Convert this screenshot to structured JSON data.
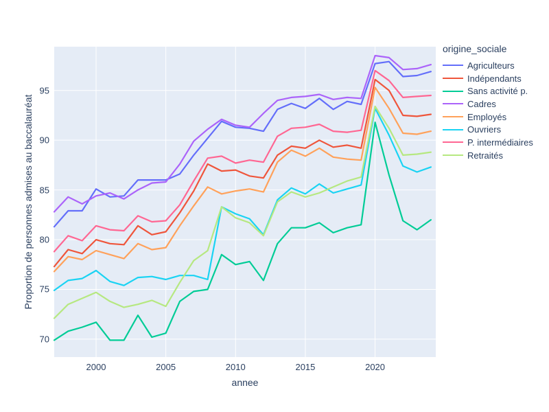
{
  "chart_data": {
    "type": "line",
    "title": "",
    "xlabel": "annee",
    "ylabel": "Proportion de personnes admises au baccalauréat",
    "legend_title": "origine_sociale",
    "x": [
      1997,
      1998,
      1999,
      2000,
      2001,
      2002,
      2003,
      2004,
      2005,
      2006,
      2007,
      2008,
      2009,
      2010,
      2011,
      2012,
      2013,
      2014,
      2015,
      2016,
      2017,
      2018,
      2019,
      2020,
      2021,
      2022,
      2023,
      2024
    ],
    "series": [
      {
        "name": "Agriculteurs",
        "color": "#636EFA",
        "values": [
          81.3,
          82.9,
          82.9,
          85.1,
          84.3,
          84.4,
          86.0,
          86.0,
          86.0,
          86.6,
          88.5,
          90.2,
          91.9,
          91.3,
          91.2,
          90.9,
          93.1,
          93.7,
          93.2,
          94.2,
          93.1,
          93.9,
          93.6,
          97.7,
          97.9,
          96.4,
          96.5,
          96.9
        ]
      },
      {
        "name": "Indépendants",
        "color": "#EF553B",
        "values": [
          77.3,
          79.0,
          78.6,
          80.0,
          79.6,
          79.5,
          81.4,
          80.5,
          80.8,
          82.7,
          84.9,
          87.6,
          86.9,
          87.0,
          86.4,
          86.2,
          88.5,
          89.4,
          89.2,
          90.0,
          89.3,
          89.5,
          89.2,
          96.1,
          95.0,
          92.5,
          92.4,
          92.6
        ]
      },
      {
        "name": "Sans activité p.",
        "color": "#00CC96",
        "values": [
          69.9,
          70.8,
          71.2,
          71.7,
          69.9,
          69.9,
          72.4,
          70.2,
          70.6,
          73.8,
          74.8,
          75.0,
          78.5,
          77.5,
          77.8,
          75.9,
          79.6,
          81.2,
          81.2,
          81.7,
          80.7,
          81.2,
          81.5,
          91.8,
          86.5,
          81.9,
          81.0,
          82.0
        ]
      },
      {
        "name": "Cadres",
        "color": "#AB63FA",
        "values": [
          82.8,
          84.3,
          83.6,
          84.4,
          84.7,
          84.1,
          85.0,
          85.7,
          85.8,
          87.6,
          89.9,
          91.1,
          92.1,
          91.5,
          91.3,
          92.7,
          94.0,
          94.3,
          94.4,
          94.6,
          94.1,
          94.3,
          94.2,
          98.5,
          98.3,
          97.1,
          97.2,
          97.6
        ]
      },
      {
        "name": "Employés",
        "color": "#FFA15A",
        "values": [
          76.8,
          78.3,
          78.0,
          78.9,
          78.5,
          78.1,
          79.6,
          79.0,
          79.2,
          81.4,
          83.4,
          85.3,
          84.6,
          84.9,
          85.1,
          84.8,
          87.8,
          89.0,
          88.4,
          89.2,
          88.3,
          88.1,
          88.0,
          95.3,
          93.2,
          90.7,
          90.6,
          90.9
        ]
      },
      {
        "name": "Ouvriers",
        "color": "#19D3F3",
        "values": [
          74.9,
          75.9,
          76.1,
          76.9,
          75.8,
          75.4,
          76.2,
          76.3,
          76.0,
          76.4,
          76.4,
          76.0,
          83.3,
          82.6,
          82.1,
          80.5,
          84.0,
          85.2,
          84.6,
          85.6,
          84.7,
          85.1,
          85.5,
          93.2,
          90.5,
          87.4,
          86.8,
          87.3
        ]
      },
      {
        "name": "P. intermédiaires",
        "color": "#FF6692",
        "values": [
          78.8,
          80.4,
          79.9,
          81.4,
          81.0,
          80.9,
          82.4,
          81.8,
          81.9,
          83.5,
          85.9,
          88.2,
          88.4,
          87.7,
          88.0,
          87.8,
          90.4,
          91.2,
          91.3,
          91.6,
          90.9,
          90.8,
          91.0,
          97.0,
          96.0,
          94.3,
          94.4,
          94.5
        ]
      },
      {
        "name": "Retraités",
        "color": "#B6E880",
        "values": [
          72.1,
          73.5,
          74.1,
          74.7,
          73.8,
          73.2,
          73.5,
          73.9,
          73.3,
          75.7,
          77.9,
          78.9,
          83.3,
          82.2,
          81.7,
          80.4,
          83.8,
          84.8,
          84.3,
          84.7,
          85.3,
          85.9,
          86.3,
          93.4,
          91.2,
          88.5,
          88.6,
          88.8
        ]
      }
    ],
    "xticks": [
      2000,
      2005,
      2010,
      2015,
      2020
    ],
    "yticks": [
      70,
      75,
      80,
      85,
      90,
      95
    ],
    "xlim": [
      1997,
      2024.35
    ],
    "ylim": [
      68.2,
      99.4
    ],
    "grid": true,
    "legend_position": "right",
    "plot_bgcolor": "#E5ECF6",
    "grid_color": "#FFFFFF",
    "text_color": "#2A3F5F",
    "line_width": 2.2
  }
}
